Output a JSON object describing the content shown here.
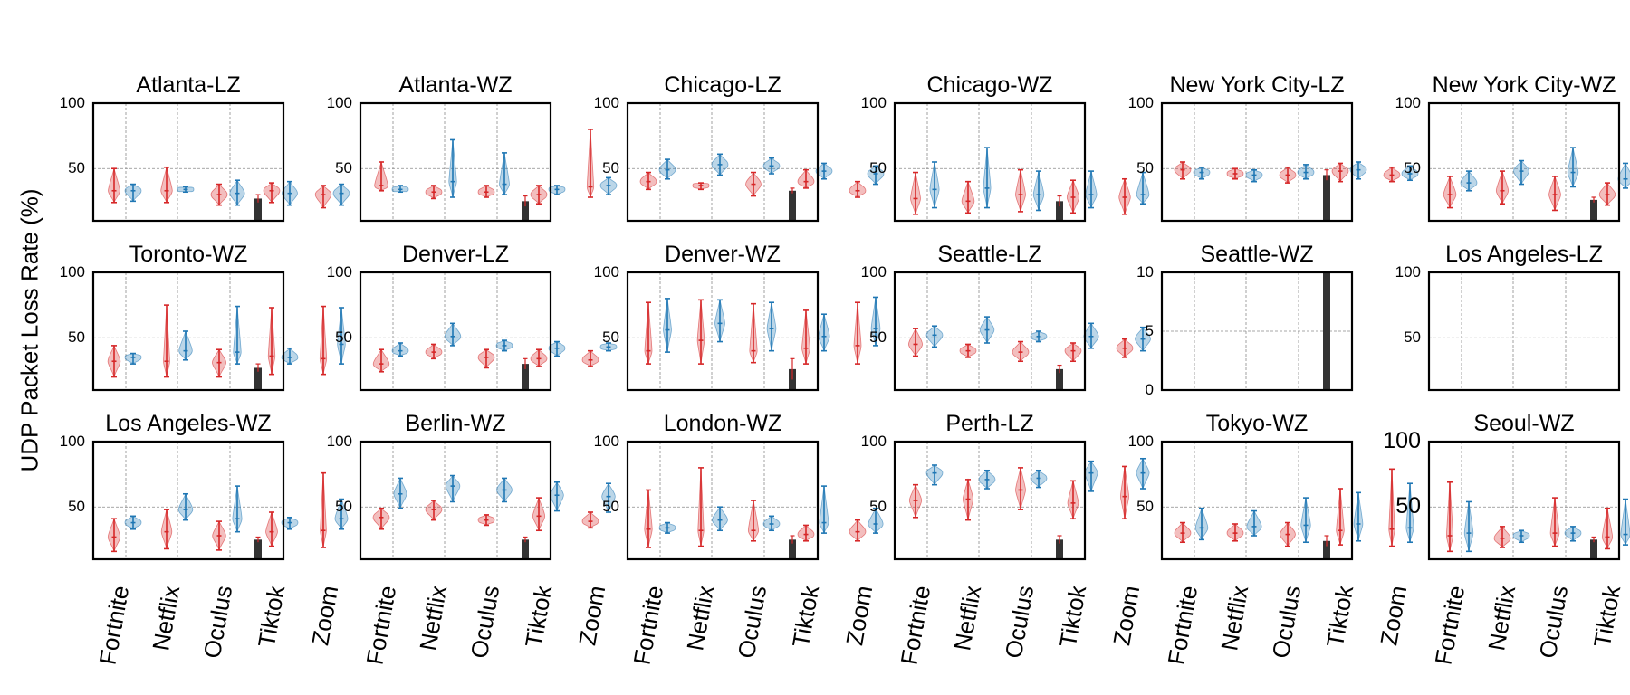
{
  "ylabel": "UDP Packet Loss Rate (%)",
  "colors": {
    "red": "#d62728",
    "blue": "#1f77b4",
    "bar": "#333333",
    "grid": "#8a8a8a"
  },
  "chart_data": {
    "type": "violin",
    "subplot_grid": [
      3,
      6
    ],
    "categories": [
      "Fortnite",
      "Netflix",
      "Oculus",
      "Tiktok",
      "Zoom"
    ],
    "panels": [
      {
        "title": "Atlanta-LZ",
        "ylim": [
          10,
          100
        ],
        "yticks": [
          "100",
          "50"
        ],
        "red": [
          [
            24,
            33,
            50
          ],
          [
            24,
            33,
            51
          ],
          [
            22,
            30,
            38
          ],
          [
            24,
            33,
            39
          ],
          [
            20,
            30,
            37
          ]
        ],
        "blue": [
          [
            25,
            33,
            38
          ],
          [
            32,
            34,
            36
          ],
          [
            22,
            31,
            41
          ],
          [
            22,
            31,
            40
          ],
          [
            22,
            31,
            38
          ]
        ],
        "bar": 27,
        "bar_err": 3
      },
      {
        "title": "Atlanta-WZ",
        "ylim": [
          10,
          100
        ],
        "yticks": [
          "100",
          "50"
        ],
        "red": [
          [
            33,
            37,
            55
          ],
          [
            27,
            32,
            37
          ],
          [
            28,
            32,
            37
          ],
          [
            23,
            30,
            37
          ],
          [
            28,
            36,
            80
          ]
        ],
        "blue": [
          [
            32,
            34,
            37
          ],
          [
            28,
            40,
            72
          ],
          [
            30,
            38,
            62
          ],
          [
            30,
            34,
            37
          ],
          [
            30,
            37,
            43
          ]
        ],
        "bar": 25,
        "bar_err": 4
      },
      {
        "title": "Chicago-LZ",
        "ylim": [
          10,
          100
        ],
        "yticks": [
          "100",
          "50"
        ],
        "red": [
          [
            34,
            40,
            47
          ],
          [
            34,
            37,
            39
          ],
          [
            29,
            38,
            47
          ],
          [
            35,
            40,
            49
          ],
          [
            28,
            33,
            40
          ]
        ],
        "blue": [
          [
            42,
            49,
            57
          ],
          [
            45,
            53,
            61
          ],
          [
            46,
            52,
            58
          ],
          [
            42,
            48,
            54
          ],
          [
            38,
            46,
            52
          ]
        ],
        "bar": 33,
        "bar_err": 2
      },
      {
        "title": "Chicago-WZ",
        "ylim": [
          10,
          100
        ],
        "yticks": [
          "100",
          "50"
        ],
        "red": [
          [
            15,
            27,
            47
          ],
          [
            16,
            25,
            40
          ],
          [
            17,
            30,
            49
          ],
          [
            16,
            28,
            41
          ],
          [
            15,
            28,
            42
          ]
        ],
        "blue": [
          [
            20,
            34,
            55
          ],
          [
            20,
            35,
            66
          ],
          [
            18,
            30,
            48
          ],
          [
            20,
            30,
            48
          ],
          [
            23,
            30,
            47
          ]
        ],
        "bar": 25,
        "bar_err": 4
      },
      {
        "title": "New York City-LZ",
        "ylim": [
          10,
          100
        ],
        "yticks": [
          "100",
          "50"
        ],
        "red": [
          [
            42,
            49,
            55
          ],
          [
            42,
            46,
            50
          ],
          [
            39,
            45,
            51
          ],
          [
            40,
            48,
            54
          ],
          [
            40,
            45,
            51
          ]
        ],
        "blue": [
          [
            42,
            47,
            51
          ],
          [
            40,
            45,
            49
          ],
          [
            42,
            47,
            53
          ],
          [
            42,
            49,
            55
          ],
          [
            41,
            46,
            52
          ]
        ],
        "bar": 45,
        "bar_err": 4
      },
      {
        "title": "New York City-WZ",
        "ylim": [
          10,
          100
        ],
        "yticks": [
          "100",
          "50"
        ],
        "red": [
          [
            20,
            30,
            44
          ],
          [
            23,
            33,
            48
          ],
          [
            18,
            30,
            44
          ],
          [
            22,
            30,
            39
          ],
          [
            25,
            31,
            40
          ]
        ],
        "blue": [
          [
            33,
            39,
            48
          ],
          [
            38,
            48,
            56
          ],
          [
            36,
            47,
            66
          ],
          [
            35,
            42,
            54
          ],
          [
            34,
            40,
            52
          ]
        ],
        "bar": 26,
        "bar_err": 2
      },
      {
        "title": "Toronto-WZ",
        "ylim": [
          10,
          100
        ],
        "yticks": [
          "100",
          "50"
        ],
        "red": [
          [
            20,
            32,
            44
          ],
          [
            20,
            32,
            75
          ],
          [
            20,
            31,
            41
          ],
          [
            22,
            36,
            73
          ],
          [
            22,
            34,
            74
          ]
        ],
        "blue": [
          [
            30,
            35,
            38
          ],
          [
            33,
            40,
            55
          ],
          [
            30,
            39,
            74
          ],
          [
            30,
            35,
            42
          ],
          [
            30,
            45,
            73
          ]
        ],
        "bar": 27,
        "bar_err": 3
      },
      {
        "title": "Denver-LZ",
        "ylim": [
          10,
          100
        ],
        "yticks": [
          "100",
          "50"
        ],
        "red": [
          [
            24,
            30,
            41
          ],
          [
            34,
            39,
            45
          ],
          [
            27,
            35,
            41
          ],
          [
            28,
            34,
            41
          ],
          [
            28,
            33,
            40
          ]
        ],
        "blue": [
          [
            36,
            40,
            46
          ],
          [
            44,
            51,
            61
          ],
          [
            40,
            44,
            48
          ],
          [
            36,
            42,
            47
          ],
          [
            40,
            43,
            46
          ]
        ],
        "bar": 30,
        "bar_err": 4
      },
      {
        "title": "Denver-WZ",
        "ylim": [
          10,
          100
        ],
        "yticks": [
          "100",
          "50"
        ],
        "red": [
          [
            30,
            40,
            77
          ],
          [
            30,
            48,
            79
          ],
          [
            31,
            40,
            76
          ],
          [
            30,
            42,
            71
          ],
          [
            30,
            44,
            77
          ]
        ],
        "blue": [
          [
            39,
            56,
            80
          ],
          [
            47,
            61,
            79
          ],
          [
            40,
            57,
            77
          ],
          [
            40,
            51,
            68
          ],
          [
            44,
            57,
            81
          ]
        ],
        "bar": 26,
        "bar_err": 8
      },
      {
        "title": "Seattle-LZ",
        "ylim": [
          10,
          100
        ],
        "yticks": [
          "100",
          "50"
        ],
        "red": [
          [
            36,
            45,
            57
          ],
          [
            35,
            40,
            45
          ],
          [
            32,
            39,
            47
          ],
          [
            32,
            40,
            46
          ],
          [
            35,
            42,
            49
          ]
        ],
        "blue": [
          [
            43,
            52,
            59
          ],
          [
            46,
            56,
            66
          ],
          [
            47,
            51,
            55
          ],
          [
            42,
            51,
            61
          ],
          [
            40,
            49,
            58
          ]
        ],
        "bar": 26,
        "bar_err": 3
      },
      {
        "title": "Seattle-WZ",
        "ylim": [
          0,
          10
        ],
        "yticks": [
          "10",
          "5",
          "0"
        ],
        "red": [],
        "blue": [],
        "bar": 10,
        "bar_err": 0
      },
      {
        "title": "Los Angeles-LZ",
        "ylim": [
          10,
          100
        ],
        "yticks": [
          "100",
          "50"
        ],
        "red": [],
        "blue": [],
        "bar": null,
        "bar_err": 0
      },
      {
        "title": "Los Angeles-WZ",
        "ylim": [
          10,
          100
        ],
        "yticks": [
          "100",
          "50"
        ],
        "red": [
          [
            16,
            27,
            41
          ],
          [
            18,
            31,
            48
          ],
          [
            17,
            28,
            39
          ],
          [
            20,
            31,
            46
          ],
          [
            19,
            32,
            76
          ]
        ],
        "blue": [
          [
            33,
            38,
            43
          ],
          [
            40,
            48,
            60
          ],
          [
            31,
            41,
            66
          ],
          [
            33,
            38,
            42
          ],
          [
            33,
            41,
            56
          ]
        ],
        "bar": 25,
        "bar_err": 2
      },
      {
        "title": "Berlin-WZ",
        "ylim": [
          10,
          100
        ],
        "yticks": [
          "100",
          "50"
        ],
        "red": [
          [
            33,
            42,
            49
          ],
          [
            40,
            48,
            55
          ],
          [
            36,
            40,
            44
          ],
          [
            32,
            43,
            57
          ],
          [
            34,
            39,
            46
          ]
        ],
        "blue": [
          [
            49,
            60,
            72
          ],
          [
            54,
            66,
            74
          ],
          [
            54,
            63,
            72
          ],
          [
            47,
            59,
            69
          ],
          [
            46,
            58,
            68
          ]
        ],
        "bar": 25,
        "bar_err": 2
      },
      {
        "title": "London-WZ",
        "ylim": [
          10,
          100
        ],
        "yticks": [
          "100",
          "50"
        ],
        "red": [
          [
            19,
            33,
            63
          ],
          [
            20,
            32,
            80
          ],
          [
            24,
            32,
            55
          ],
          [
            24,
            29,
            36
          ],
          [
            24,
            31,
            40
          ]
        ],
        "blue": [
          [
            30,
            34,
            38
          ],
          [
            32,
            40,
            50
          ],
          [
            32,
            37,
            43
          ],
          [
            30,
            38,
            66
          ],
          [
            30,
            37,
            49
          ]
        ],
        "bar": 25,
        "bar_err": 3
      },
      {
        "title": "Perth-LZ",
        "ylim": [
          10,
          100
        ],
        "yticks": [
          "100",
          "50"
        ],
        "red": [
          [
            42,
            55,
            67
          ],
          [
            40,
            56,
            71
          ],
          [
            48,
            63,
            80
          ],
          [
            41,
            53,
            70
          ],
          [
            41,
            58,
            81
          ]
        ],
        "blue": [
          [
            67,
            76,
            82
          ],
          [
            64,
            71,
            78
          ],
          [
            65,
            72,
            78
          ],
          [
            62,
            76,
            85
          ],
          [
            64,
            76,
            87
          ]
        ],
        "bar": 25,
        "bar_err": 3
      },
      {
        "title": "Tokyo-WZ",
        "ylim": [
          10,
          100
        ],
        "yticks": [
          "100",
          "50"
        ],
        "red": [
          [
            23,
            30,
            38
          ],
          [
            24,
            30,
            37
          ],
          [
            20,
            29,
            38
          ],
          [
            21,
            32,
            64
          ],
          [
            20,
            33,
            79
          ]
        ],
        "blue": [
          [
            25,
            34,
            49
          ],
          [
            28,
            35,
            47
          ],
          [
            23,
            36,
            57
          ],
          [
            24,
            37,
            61
          ],
          [
            23,
            34,
            68
          ]
        ],
        "bar": 24,
        "bar_err": 4
      },
      {
        "title": "Seoul-WZ",
        "ylim": [
          10,
          100
        ],
        "yticks": [
          "100",
          "50"
        ],
        "red": [
          [
            16,
            28,
            69
          ],
          [
            19,
            26,
            35
          ],
          [
            20,
            30,
            57
          ],
          [
            18,
            27,
            49
          ],
          [
            18,
            28,
            59
          ]
        ],
        "blue": [
          [
            16,
            30,
            54
          ],
          [
            23,
            28,
            32
          ],
          [
            24,
            30,
            35
          ],
          [
            21,
            29,
            56
          ],
          [
            22,
            28,
            35
          ]
        ],
        "bar": 25,
        "bar_err": 2
      }
    ]
  }
}
